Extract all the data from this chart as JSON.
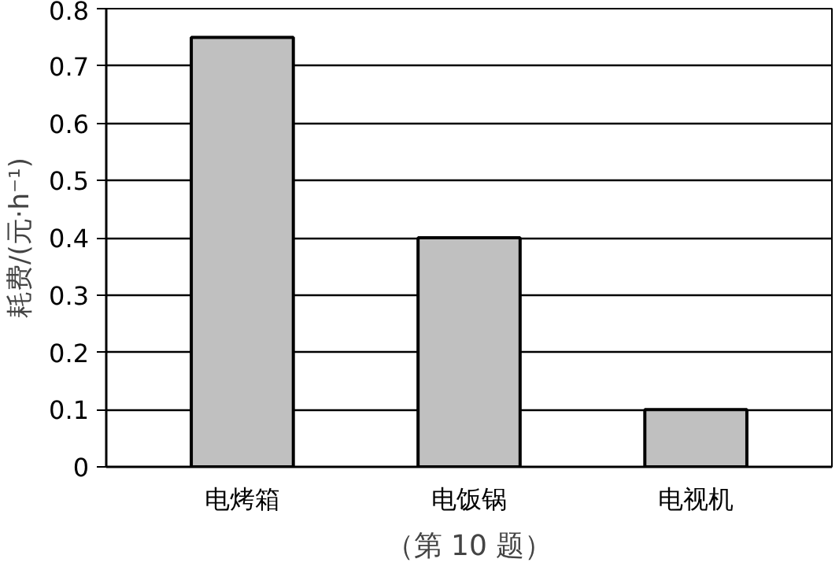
{
  "chart_data": {
    "type": "bar",
    "ylabel": "耗费/(元·h⁻¹)",
    "categories": [
      "电烤箱",
      "电饭锅",
      "电视机"
    ],
    "values": [
      0.75,
      0.4,
      0.1
    ],
    "color": "#c0c0c0",
    "ylim": [
      0,
      0.8
    ],
    "yticks": [
      0,
      0.1,
      0.2,
      0.3,
      0.4,
      0.5,
      0.6,
      0.7,
      0.8
    ],
    "grid": "y",
    "annotations": [
      "（第 10 题）"
    ]
  }
}
